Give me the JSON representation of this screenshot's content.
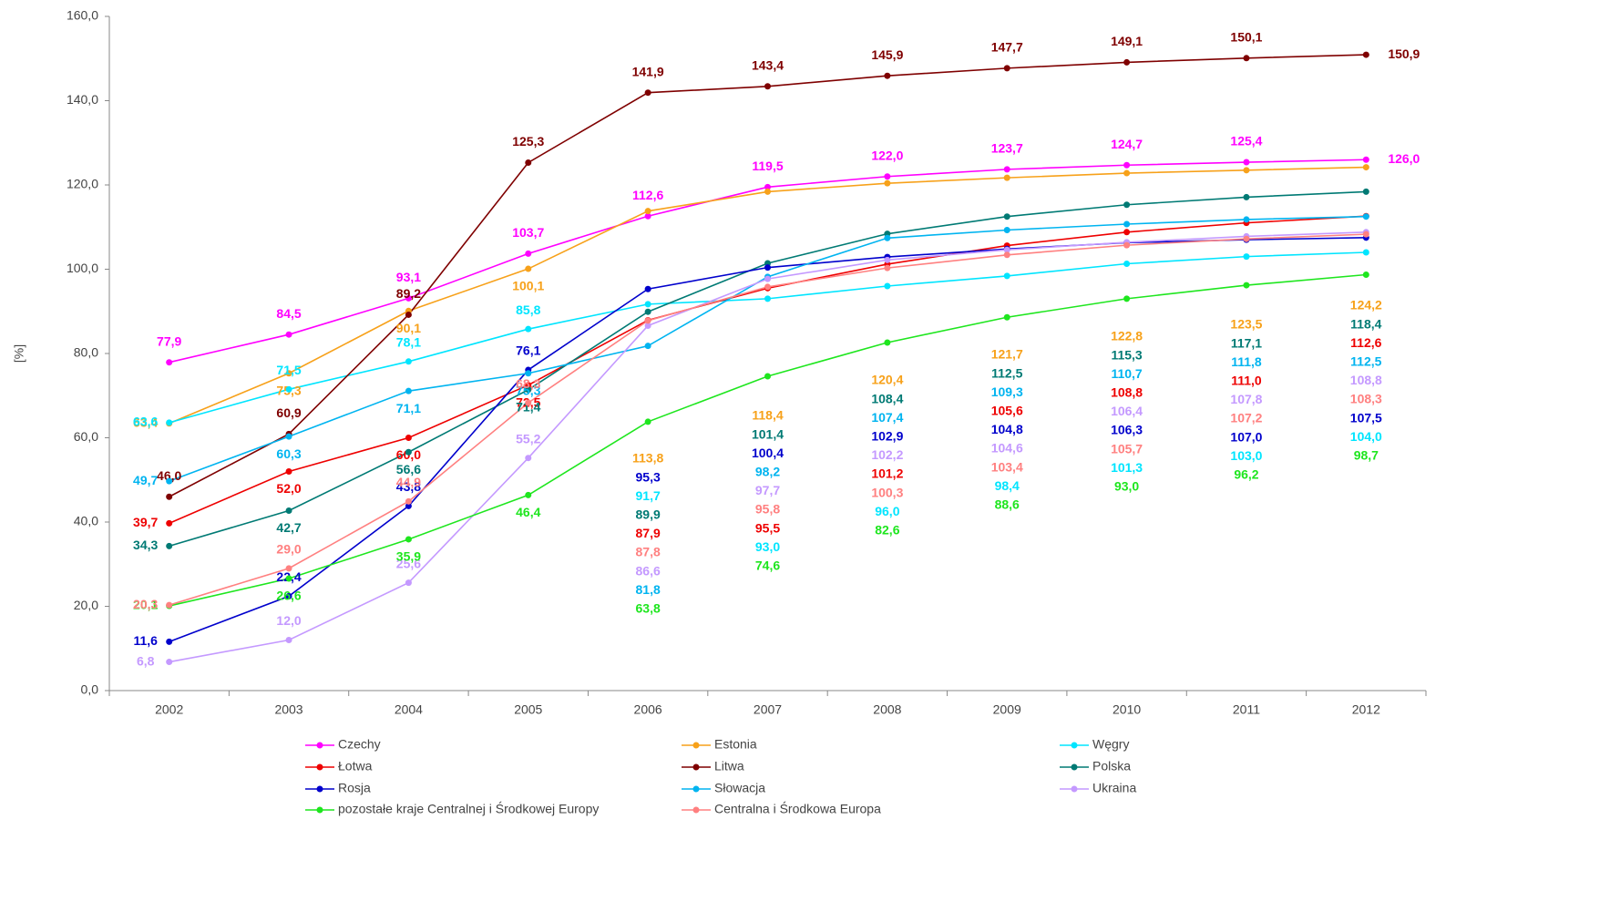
{
  "chart_data": {
    "type": "line",
    "y_label": "[%]",
    "categories": [
      "2002",
      "2003",
      "2004",
      "2005",
      "2006",
      "2007",
      "2008",
      "2009",
      "2010",
      "2011",
      "2012"
    ],
    "ylim": [
      0,
      160
    ],
    "yticks": [
      {
        "value": 0,
        "label": "0,0"
      },
      {
        "value": 20,
        "label": "20,0"
      },
      {
        "value": 40,
        "label": "40,0"
      },
      {
        "value": 60,
        "label": "60,0"
      },
      {
        "value": 80,
        "label": "80,0"
      },
      {
        "value": 100,
        "label": "100,0"
      },
      {
        "value": 120,
        "label": "120,0"
      },
      {
        "value": 140,
        "label": "140,0"
      },
      {
        "value": 160,
        "label": "160,0"
      }
    ],
    "legend": "bottom",
    "series": [
      {
        "name": "Czechy",
        "color": "#ff00ff",
        "values": [
          77.9,
          84.5,
          93.1,
          103.7,
          112.6,
          119.5,
          122.0,
          123.7,
          124.7,
          125.4,
          126.0
        ],
        "value_labels": [
          "77,9",
          "84,5",
          "93,1",
          "103,7",
          "112,6",
          "119,5",
          "122,0",
          "123,7",
          "124,7",
          "125,4",
          "126,0"
        ]
      },
      {
        "name": "Estonia",
        "color": "#f7a11a",
        "values": [
          63.4,
          75.3,
          90.1,
          100.1,
          113.8,
          118.4,
          120.4,
          121.7,
          122.8,
          123.5,
          124.2
        ],
        "value_labels": [
          "63,4",
          "75,3",
          "90,1",
          "100,1",
          "113,8",
          "118,4",
          "120,4",
          "121,7",
          "122,8",
          "123,5",
          "124,2"
        ]
      },
      {
        "name": "Węgry",
        "color": "#00e5ff",
        "values": [
          63.6,
          71.5,
          78.1,
          85.8,
          91.7,
          93.0,
          96.0,
          98.4,
          101.3,
          103.0,
          104.0
        ],
        "value_labels": [
          "63,6",
          "71,5",
          "78,1",
          "85,8",
          "91,7",
          "93,0",
          "96,0",
          "98,4",
          "101,3",
          "103,0",
          "104,0"
        ]
      },
      {
        "name": "Łotwa",
        "color": "#ee0000",
        "values": [
          39.7,
          52.0,
          60.0,
          72.5,
          87.9,
          95.5,
          101.2,
          105.6,
          108.8,
          111.0,
          112.6
        ],
        "value_labels": [
          "39,7",
          "52,0",
          "60,0",
          "72,5",
          "87,9",
          "95,5",
          "101,2",
          "105,6",
          "108,8",
          "111,0",
          "112,6"
        ]
      },
      {
        "name": "Litwa",
        "color": "#7f0000",
        "values": [
          46.0,
          60.9,
          89.2,
          125.3,
          141.9,
          143.4,
          145.9,
          147.7,
          149.1,
          150.1,
          150.9
        ],
        "value_labels": [
          "46,0",
          "60,9",
          "89,2",
          "125,3",
          "141,9",
          "143,4",
          "145,9",
          "147,7",
          "149,1",
          "150,1",
          "150,9"
        ]
      },
      {
        "name": "Polska",
        "color": "#007a74",
        "values": [
          34.3,
          42.7,
          56.6,
          71.4,
          89.9,
          101.4,
          108.4,
          112.5,
          115.3,
          117.1,
          118.4
        ],
        "value_labels": [
          "34,3",
          "42,7",
          "56,6",
          "71,4",
          "89,9",
          "101,4",
          "108,4",
          "112,5",
          "115,3",
          "117,1",
          "118,4"
        ]
      },
      {
        "name": "Rosja",
        "color": "#0000cc",
        "values": [
          11.6,
          22.4,
          43.8,
          76.1,
          95.3,
          100.4,
          102.9,
          104.8,
          106.3,
          107.0,
          107.5
        ],
        "value_labels": [
          "11,6",
          "22,4",
          "43,8",
          "76,1",
          "95,3",
          "100,4",
          "102,9",
          "104,8",
          "106,3",
          "107,0",
          "107,5"
        ]
      },
      {
        "name": "Słowacja",
        "color": "#00b4f0",
        "values": [
          49.7,
          60.3,
          71.1,
          75.3,
          81.8,
          98.2,
          107.4,
          109.3,
          110.7,
          111.8,
          112.5
        ],
        "value_labels": [
          "49,7",
          "60,3",
          "71,1",
          "75,3",
          "81,8",
          "98,2",
          "107,4",
          "109,3",
          "110,7",
          "111,8",
          "112,5"
        ]
      },
      {
        "name": "Ukraina",
        "color": "#c499ff",
        "values": [
          6.8,
          12.0,
          25.6,
          55.2,
          86.6,
          97.7,
          102.2,
          104.6,
          106.4,
          107.8,
          108.8
        ],
        "value_labels": [
          "6,8",
          "12,0",
          "25,6",
          "55,2",
          "86,6",
          "97,7",
          "102,2",
          "104,6",
          "106,4",
          "107,8",
          "108,8"
        ]
      },
      {
        "name": "pozostałe kraje Centralnej i Środkowej Europy",
        "color": "#1ee61e",
        "values": [
          20.1,
          26.6,
          35.9,
          46.4,
          63.8,
          74.6,
          82.6,
          88.6,
          93.0,
          96.2,
          98.7
        ],
        "value_labels": [
          "20,1",
          "26,6",
          "35,9",
          "46,4",
          "63,8",
          "74,6",
          "82,6",
          "88,6",
          "93,0",
          "96,2",
          "98,7"
        ]
      },
      {
        "name": "Centralna i Środkowa Europa",
        "color": "#ff8080",
        "values": [
          20.3,
          29.0,
          44.9,
          68.3,
          87.8,
          95.8,
          100.3,
          103.4,
          105.7,
          107.2,
          108.3
        ],
        "value_labels": [
          "20,3",
          "29,0",
          "44,9",
          "68,3",
          "87,8",
          "95,8",
          "100,3",
          "103,4",
          "105,7",
          "107,2",
          "108,3"
        ]
      }
    ]
  }
}
